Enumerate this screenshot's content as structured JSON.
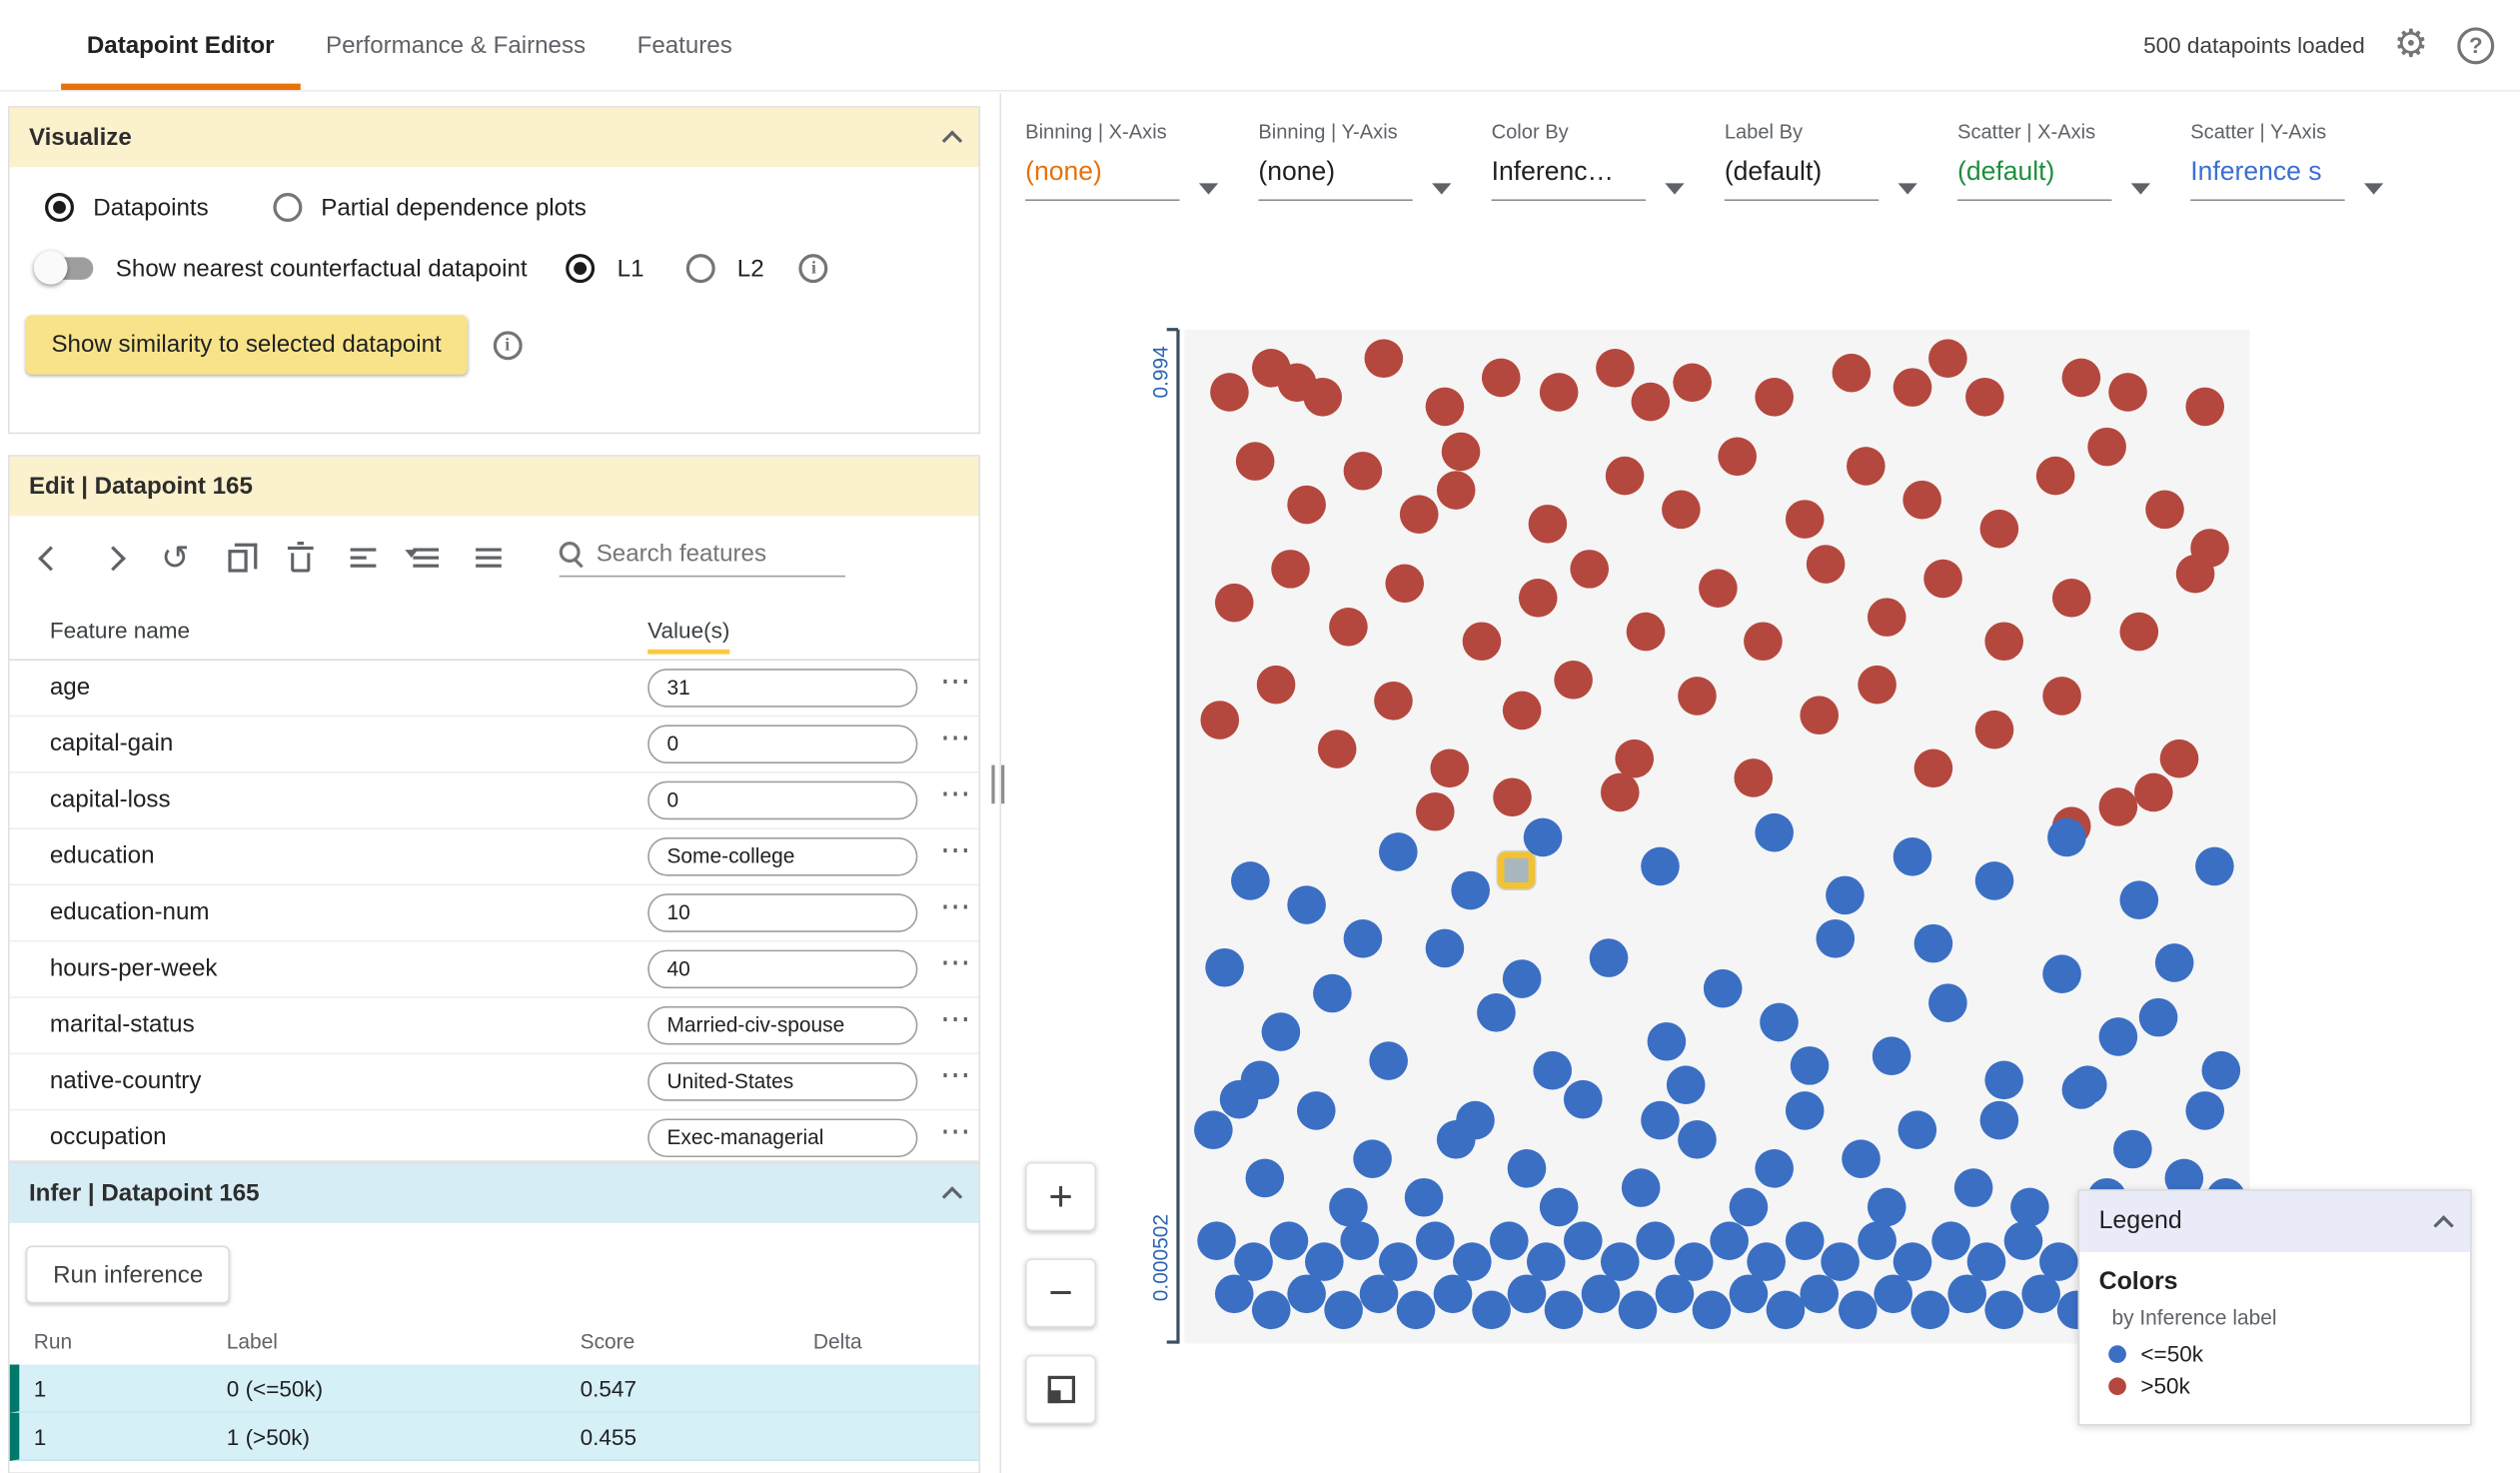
{
  "header": {
    "tabs": [
      "Datapoint Editor",
      "Performance & Fairness",
      "Features"
    ],
    "status": "500 datapoints loaded"
  },
  "icons": {
    "settings": "gear",
    "help": "question-circle",
    "search": "magnifier",
    "info": "i-circle",
    "collapse": "chevron-up",
    "row_menu": "horizontal-ellipsis"
  },
  "visualize": {
    "title": "Visualize",
    "modes": [
      {
        "label": "Datapoints",
        "selected": true
      },
      {
        "label": "Partial dependence plots",
        "selected": false
      }
    ],
    "counterfactual_label": "Show nearest counterfactual datapoint",
    "norms": [
      {
        "label": "L1",
        "selected": true
      },
      {
        "label": "L2",
        "selected": false
      }
    ],
    "similarity_button": "Show similarity to selected datapoint"
  },
  "edit": {
    "title": "Edit | Datapoint 165",
    "search_placeholder": "Search features",
    "columns": {
      "name": "Feature name",
      "values": "Value(s)"
    },
    "features": [
      {
        "name": "age",
        "value": "31"
      },
      {
        "name": "capital-gain",
        "value": "0"
      },
      {
        "name": "capital-loss",
        "value": "0"
      },
      {
        "name": "education",
        "value": "Some-college"
      },
      {
        "name": "education-num",
        "value": "10"
      },
      {
        "name": "hours-per-week",
        "value": "40"
      },
      {
        "name": "marital-status",
        "value": "Married-civ-spouse"
      },
      {
        "name": "native-country",
        "value": "United-States"
      },
      {
        "name": "occupation",
        "value": "Exec-managerial"
      }
    ]
  },
  "infer": {
    "title": "Infer | Datapoint 165",
    "run_button": "Run inference",
    "columns": [
      "Run",
      "Label",
      "Score",
      "Delta"
    ],
    "rows": [
      {
        "run": "1",
        "label": "0 (<=50k)",
        "score": "0.547",
        "delta": ""
      },
      {
        "run": "1",
        "label": "1 (>50k)",
        "score": "0.455",
        "delta": ""
      }
    ]
  },
  "controls": [
    {
      "label": "Binning | X-Axis",
      "value": "(none)",
      "color": "#e8710a"
    },
    {
      "label": "Binning | Y-Axis",
      "value": "(none)",
      "color": "#202124"
    },
    {
      "label": "Color By",
      "value": "Inferenc…",
      "color": "#202124"
    },
    {
      "label": "Label By",
      "value": "(default)",
      "color": "#202124"
    },
    {
      "label": "Scatter | X-Axis",
      "value": "(default)",
      "color": "#1e8e3e"
    },
    {
      "label": "Scatter | Y-Axis",
      "value": "Inference s",
      "color": "#3b6fd4"
    }
  ],
  "zoom": {
    "plus": "+",
    "minus": "−"
  },
  "legend": {
    "title": "Legend",
    "section": "Colors",
    "subtitle": "by Inference label",
    "items": [
      {
        "label": "<=50k",
        "color": "#3b6fc4"
      },
      {
        "label": ">50k",
        "color": "#b5483e"
      }
    ]
  },
  "colors": {
    "accent_orange": "#e8710a",
    "panel_header_yellow": "#fcf1cd",
    "similarity_button_yellow": "#f8e38a",
    "values_underline_yellow": "#f9cb40",
    "infer_header_blue": "#d7edf6",
    "infer_row_cyan": "#d6f0f7",
    "infer_row_teal": "#00796b",
    "axis_label_blue": "#2b65b0",
    "legend_header_lavender": "#e9ecf8"
  },
  "chart_data": {
    "type": "scatter",
    "note": "points are [x,y] fractions of plot area, y measured from top",
    "y_tick_labels": [
      "0.994",
      "0.000502"
    ],
    "selected_point": [
      0.305,
      0.535
    ],
    "series": [
      {
        "name": ">50k",
        "color": "#b5483e",
        "points": [
          [
            0.025,
            0.045
          ],
          [
            0.065,
            0.02
          ],
          [
            0.09,
            0.035
          ],
          [
            0.115,
            0.05
          ],
          [
            0.175,
            0.01
          ],
          [
            0.235,
            0.06
          ],
          [
            0.29,
            0.03
          ],
          [
            0.345,
            0.045
          ],
          [
            0.4,
            0.02
          ],
          [
            0.435,
            0.055
          ],
          [
            0.475,
            0.035
          ],
          [
            0.555,
            0.05
          ],
          [
            0.63,
            0.025
          ],
          [
            0.69,
            0.04
          ],
          [
            0.725,
            0.01
          ],
          [
            0.76,
            0.05
          ],
          [
            0.855,
            0.03
          ],
          [
            0.9,
            0.045
          ],
          [
            0.975,
            0.06
          ],
          [
            0.05,
            0.115
          ],
          [
            0.1,
            0.16
          ],
          [
            0.155,
            0.125
          ],
          [
            0.21,
            0.17
          ],
          [
            0.25,
            0.105
          ],
          [
            0.245,
            0.145
          ],
          [
            0.335,
            0.18
          ],
          [
            0.41,
            0.13
          ],
          [
            0.465,
            0.165
          ],
          [
            0.52,
            0.11
          ],
          [
            0.585,
            0.175
          ],
          [
            0.645,
            0.12
          ],
          [
            0.7,
            0.155
          ],
          [
            0.775,
            0.185
          ],
          [
            0.83,
            0.13
          ],
          [
            0.88,
            0.1
          ],
          [
            0.935,
            0.165
          ],
          [
            0.98,
            0.205
          ],
          [
            0.03,
            0.26
          ],
          [
            0.085,
            0.225
          ],
          [
            0.14,
            0.285
          ],
          [
            0.195,
            0.24
          ],
          [
            0.27,
            0.3
          ],
          [
            0.325,
            0.255
          ],
          [
            0.375,
            0.225
          ],
          [
            0.43,
            0.29
          ],
          [
            0.5,
            0.245
          ],
          [
            0.545,
            0.3
          ],
          [
            0.605,
            0.22
          ],
          [
            0.665,
            0.275
          ],
          [
            0.72,
            0.235
          ],
          [
            0.78,
            0.3
          ],
          [
            0.845,
            0.255
          ],
          [
            0.91,
            0.29
          ],
          [
            0.965,
            0.23
          ],
          [
            0.015,
            0.38
          ],
          [
            0.07,
            0.345
          ],
          [
            0.13,
            0.41
          ],
          [
            0.185,
            0.36
          ],
          [
            0.24,
            0.43
          ],
          [
            0.31,
            0.37
          ],
          [
            0.36,
            0.34
          ],
          [
            0.42,
            0.42
          ],
          [
            0.48,
            0.355
          ],
          [
            0.535,
            0.44
          ],
          [
            0.6,
            0.375
          ],
          [
            0.655,
            0.345
          ],
          [
            0.71,
            0.43
          ],
          [
            0.77,
            0.39
          ],
          [
            0.835,
            0.355
          ],
          [
            0.89,
            0.47
          ],
          [
            0.95,
            0.42
          ],
          [
            0.3,
            0.46
          ],
          [
            0.225,
            0.475
          ],
          [
            0.405,
            0.455
          ],
          [
            0.845,
            0.49
          ],
          [
            0.925,
            0.455
          ]
        ]
      },
      {
        "name": "<=50k",
        "color": "#3b6fc4",
        "points": [
          [
            0.19,
            0.515
          ],
          [
            0.26,
            0.555
          ],
          [
            0.33,
            0.5
          ],
          [
            0.445,
            0.53
          ],
          [
            0.555,
            0.495
          ],
          [
            0.625,
            0.56
          ],
          [
            0.69,
            0.52
          ],
          [
            0.77,
            0.545
          ],
          [
            0.84,
            0.5
          ],
          [
            0.91,
            0.565
          ],
          [
            0.985,
            0.53
          ],
          [
            0.1,
            0.57
          ],
          [
            0.045,
            0.545
          ],
          [
            0.02,
            0.635
          ],
          [
            0.075,
            0.7
          ],
          [
            0.125,
            0.66
          ],
          [
            0.18,
            0.73
          ],
          [
            0.235,
            0.615
          ],
          [
            0.285,
            0.68
          ],
          [
            0.34,
            0.74
          ],
          [
            0.395,
            0.625
          ],
          [
            0.45,
            0.71
          ],
          [
            0.505,
            0.655
          ],
          [
            0.56,
            0.69
          ],
          [
            0.615,
            0.605
          ],
          [
            0.67,
            0.725
          ],
          [
            0.725,
            0.67
          ],
          [
            0.78,
            0.75
          ],
          [
            0.835,
            0.64
          ],
          [
            0.89,
            0.705
          ],
          [
            0.945,
            0.63
          ],
          [
            0.99,
            0.74
          ],
          [
            0.055,
            0.75
          ],
          [
            0.155,
            0.605
          ],
          [
            0.31,
            0.645
          ],
          [
            0.47,
            0.755
          ],
          [
            0.59,
            0.735
          ],
          [
            0.71,
            0.61
          ],
          [
            0.86,
            0.755
          ],
          [
            0.93,
            0.685
          ],
          [
            0.01,
            0.8
          ],
          [
            0.06,
            0.85
          ],
          [
            0.11,
            0.78
          ],
          [
            0.165,
            0.83
          ],
          [
            0.215,
            0.87
          ],
          [
            0.265,
            0.79
          ],
          [
            0.315,
            0.84
          ],
          [
            0.37,
            0.77
          ],
          [
            0.425,
            0.86
          ],
          [
            0.48,
            0.81
          ],
          [
            0.53,
            0.88
          ],
          [
            0.585,
            0.78
          ],
          [
            0.64,
            0.83
          ],
          [
            0.695,
            0.8
          ],
          [
            0.75,
            0.86
          ],
          [
            0.805,
            0.88
          ],
          [
            0.855,
            0.76
          ],
          [
            0.905,
            0.82
          ],
          [
            0.955,
            0.85
          ],
          [
            0.995,
            0.87
          ],
          [
            0.035,
            0.77
          ],
          [
            0.14,
            0.88
          ],
          [
            0.245,
            0.81
          ],
          [
            0.345,
            0.88
          ],
          [
            0.445,
            0.79
          ],
          [
            0.555,
            0.84
          ],
          [
            0.665,
            0.88
          ],
          [
            0.775,
            0.79
          ],
          [
            0.88,
            0.87
          ],
          [
            0.975,
            0.78
          ],
          [
            0.012,
            0.915
          ],
          [
            0.048,
            0.935
          ],
          [
            0.083,
            0.915
          ],
          [
            0.118,
            0.935
          ],
          [
            0.152,
            0.915
          ],
          [
            0.19,
            0.935
          ],
          [
            0.226,
            0.915
          ],
          [
            0.262,
            0.935
          ],
          [
            0.297,
            0.915
          ],
          [
            0.333,
            0.935
          ],
          [
            0.37,
            0.915
          ],
          [
            0.406,
            0.935
          ],
          [
            0.44,
            0.915
          ],
          [
            0.477,
            0.935
          ],
          [
            0.512,
            0.915
          ],
          [
            0.548,
            0.935
          ],
          [
            0.585,
            0.915
          ],
          [
            0.62,
            0.935
          ],
          [
            0.655,
            0.915
          ],
          [
            0.69,
            0.935
          ],
          [
            0.727,
            0.915
          ],
          [
            0.762,
            0.935
          ],
          [
            0.798,
            0.915
          ],
          [
            0.833,
            0.935
          ],
          [
            0.87,
            0.915
          ],
          [
            0.905,
            0.935
          ],
          [
            0.94,
            0.915
          ],
          [
            0.976,
            0.935
          ],
          [
            0.03,
            0.968
          ],
          [
            0.066,
            0.985
          ],
          [
            0.1,
            0.968
          ],
          [
            0.136,
            0.985
          ],
          [
            0.17,
            0.968
          ],
          [
            0.207,
            0.985
          ],
          [
            0.243,
            0.968
          ],
          [
            0.28,
            0.985
          ],
          [
            0.315,
            0.968
          ],
          [
            0.35,
            0.985
          ],
          [
            0.387,
            0.968
          ],
          [
            0.423,
            0.985
          ],
          [
            0.458,
            0.968
          ],
          [
            0.494,
            0.985
          ],
          [
            0.53,
            0.968
          ],
          [
            0.566,
            0.985
          ],
          [
            0.6,
            0.968
          ],
          [
            0.637,
            0.985
          ],
          [
            0.672,
            0.968
          ],
          [
            0.708,
            0.985
          ],
          [
            0.744,
            0.968
          ],
          [
            0.78,
            0.985
          ],
          [
            0.815,
            0.968
          ],
          [
            0.85,
            0.985
          ],
          [
            0.887,
            0.968
          ],
          [
            0.922,
            0.985
          ],
          [
            0.958,
            0.968
          ],
          [
            0.993,
            0.985
          ]
        ]
      }
    ]
  }
}
